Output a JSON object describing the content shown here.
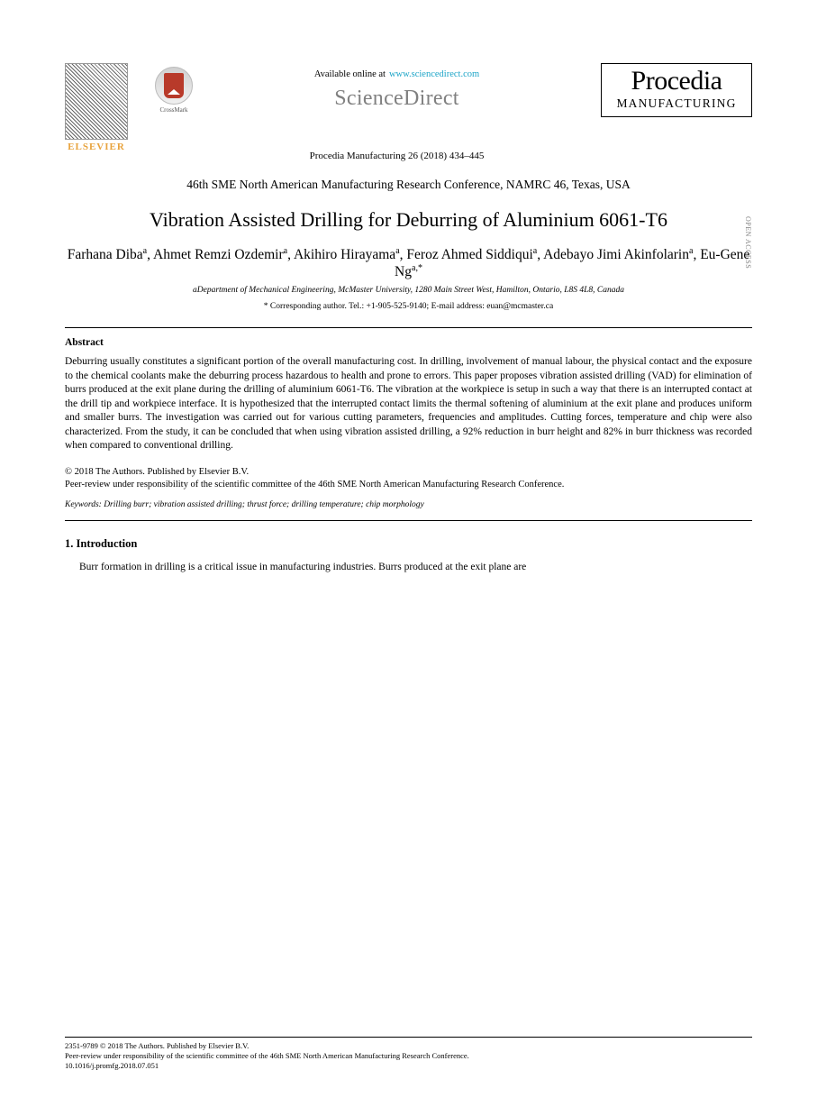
{
  "header": {
    "elsevier_label": "ELSEVIER",
    "crossmark_label": "CrossMark",
    "available_at": "Available online at",
    "sciencedirect_url": "www.sciencedirect.com",
    "sciencedirect_word": "ScienceDirect",
    "journal_line": "Procedia Manufacturing 26 (2018) 434–445",
    "procedia_word": "Procedia",
    "procedia_sub": "MANUFACTURING"
  },
  "oa_badge": "OPEN ACCESS",
  "conference": {
    "line1": "46th SME North American Manufacturing Research Conference, NAMRC 46, Texas, USA"
  },
  "title": "Vibration Assisted Drilling for Deburring of Aluminium 6061-T6",
  "authors_html": "Farhana Diba<sup>a</sup>, Ahmet Remzi Ozdemir<sup>a</sup>, Akihiro Hirayama<sup>a</sup>, Feroz Ahmed Siddiqui<sup>a</sup>, Adebayo Jimi Akinfolarin<sup>a</sup>, Eu-Gene Ng<sup>a,*</sup>",
  "affiliation": "aDepartment of Mechanical Engineering, McMaster University, 1280 Main Street West, Hamilton, Ontario, L8S 4L8, Canada",
  "corresponding": "* Corresponding author. Tel.: +1-905-525-9140; E-mail address: euan@mcmaster.ca",
  "abstract_head": "Abstract",
  "abstract": "Deburring usually constitutes a significant portion of the overall manufacturing cost. In drilling, involvement of manual labour, the physical contact and the exposure to the chemical coolants make the deburring process hazardous to health and prone to errors. This paper proposes vibration assisted drilling (VAD) for elimination of burrs produced at the exit plane during the drilling of aluminium 6061-T6. The vibration at the workpiece is setup in such a way that there is an interrupted contact at the drill tip and workpiece interface. It is hypothesized that the interrupted contact limits the thermal softening of aluminium at the exit plane and produces uniform and smaller burrs. The investigation was carried out for various cutting parameters, frequencies and amplitudes. Cutting forces, temperature and chip were also characterized. From the study, it can be concluded that when using vibration assisted drilling, a 92% reduction in burr height and 82% in burr thickness was recorded when compared to conventional drilling.",
  "copyright": {
    "line1": "© 2018 The Authors. Published by Elsevier B.V.",
    "line2": "Peer-review under responsibility of the scientific committee of the 46th SME North American Manufacturing Research Conference."
  },
  "keywords_label": "Keywords:",
  "keywords": "Drilling burr; vibration assisted drilling; thrust force; drilling temperature; chip morphology",
  "section1_head": "1. Introduction",
  "section1_body": "Burr formation in drilling is a critical issue in manufacturing industries. Burrs produced at the exit plane are",
  "footer": {
    "issn_line": "2351-9789 © 2018 The Authors. Published by Elsevier B.V.",
    "peer_line": "Peer-review under responsibility of the scientific committee of the 46th SME North American Manufacturing Research Conference.",
    "doi_line": "10.1016/j.promfg.2018.07.051"
  },
  "colors": {
    "link": "#1ba4c7",
    "elsevier_orange": "#e8a33d",
    "gray": "#808080",
    "crossmark_red": "#b83a2a"
  }
}
